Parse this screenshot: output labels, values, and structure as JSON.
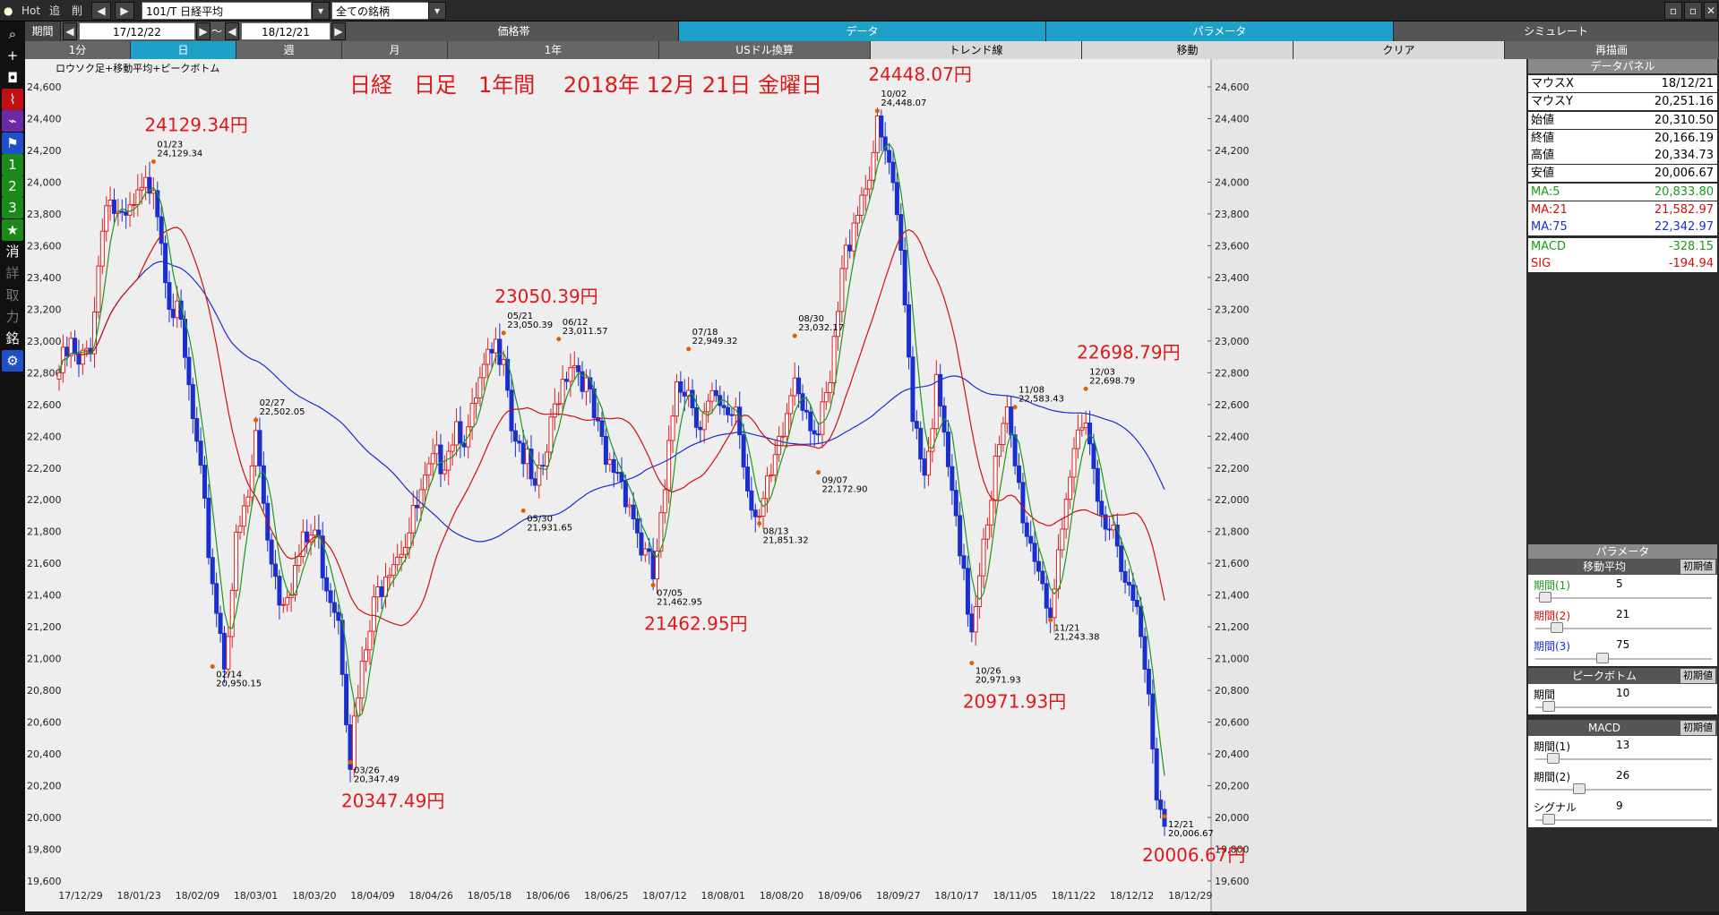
{
  "toolbar": {
    "hot": "Hot",
    "add": "追",
    "del": "削",
    "symbol": "101/T 日経平均",
    "filter": "全ての銘柄",
    "period_label": "期間",
    "date_from": "17/12/22",
    "sep": "～",
    "date_to": "18/12/21"
  },
  "tabs_top": [
    "価格帯",
    "データ",
    "パラメータ",
    "シミュレート"
  ],
  "tabs_sub": [
    "1分",
    "日",
    "週",
    "月",
    "1年",
    "USドル換算",
    "トレンド線",
    "移動",
    "クリア",
    "再描画"
  ],
  "side_icons": [
    "search-icon",
    "plus-icon",
    "camera-icon",
    "chart-icon",
    "chart2-icon",
    "flag-icon",
    "1",
    "2",
    "3",
    "★",
    "消",
    "詳",
    "取",
    "力",
    "銘",
    "gear-icon"
  ],
  "chart_title": "日経　日足　1年間　 2018年 12月 21日 金曜日",
  "chart_caption": "ロウソク足+移動平均+ピークボトム",
  "chart_data": {
    "type": "candlestick",
    "title": "日経　日足　1年間　 2018年 12月 21日 金曜日",
    "ylim": [
      19600,
      24600
    ],
    "y_ticks": [
      "24,600",
      "24,400",
      "24,200",
      "24,000",
      "23,800",
      "23,600",
      "23,400",
      "23,200",
      "23,000",
      "22,800",
      "22,600",
      "22,400",
      "22,200",
      "22,000",
      "21,800",
      "21,600",
      "21,400",
      "21,200",
      "21,000",
      "20,800",
      "20,600",
      "20,400",
      "20,200",
      "20,000",
      "19,800",
      "19,600"
    ],
    "x_ticks": [
      "17/12/29",
      "18/01/23",
      "18/02/09",
      "18/03/01",
      "18/03/20",
      "18/04/09",
      "18/04/26",
      "18/05/18",
      "18/06/06",
      "18/06/25",
      "18/07/12",
      "18/08/01",
      "18/08/20",
      "18/09/06",
      "18/09/27",
      "18/10/17",
      "18/11/05",
      "18/11/22",
      "18/12/12",
      "18/12/29"
    ],
    "peak_labels": [
      {
        "date": "01/23",
        "value": "24,129.34",
        "big": "24129.34円"
      },
      {
        "date": "02/14",
        "value": "20,950.15"
      },
      {
        "date": "02/27",
        "value": "22,502.05"
      },
      {
        "date": "03/26",
        "value": "20,347.49",
        "big": "20347.49円"
      },
      {
        "date": "05/21",
        "value": "23,050.39",
        "big": "23050.39円"
      },
      {
        "date": "05/30",
        "value": "21,931.65"
      },
      {
        "date": "06/12",
        "value": "23,011.57"
      },
      {
        "date": "07/05",
        "value": "21,462.95",
        "big": "21462.95円"
      },
      {
        "date": "07/18",
        "value": "22,949.32"
      },
      {
        "date": "08/13",
        "value": "21,851.32"
      },
      {
        "date": "08/30",
        "value": "23,032.17"
      },
      {
        "date": "09/07",
        "value": "22,172.90"
      },
      {
        "date": "10/02",
        "value": "24,448.07",
        "big": "24448.07円"
      },
      {
        "date": "10/26",
        "value": "20,971.93",
        "big": "20971.93円"
      },
      {
        "date": "11/08",
        "value": "22,583.43"
      },
      {
        "date": "11/21",
        "value": "21,243.38"
      },
      {
        "date": "12/03",
        "value": "22,698.79",
        "big": "22698.79円"
      },
      {
        "date": "12/21",
        "value": "20,006.67",
        "big": "20006.67円"
      }
    ],
    "anchors": [
      [
        0,
        22800
      ],
      [
        3,
        22950
      ],
      [
        5,
        22800
      ],
      [
        8,
        23000
      ],
      [
        12,
        23950
      ],
      [
        16,
        23700
      ],
      [
        21,
        23900
      ],
      [
        24,
        24050
      ],
      [
        28,
        23300
      ],
      [
        31,
        23050
      ],
      [
        35,
        22300
      ],
      [
        39,
        21500
      ],
      [
        42,
        21000
      ],
      [
        45,
        21700
      ],
      [
        48,
        22000
      ],
      [
        50,
        22400
      ],
      [
        53,
        21800
      ],
      [
        56,
        21400
      ],
      [
        59,
        21500
      ],
      [
        62,
        21700
      ],
      [
        65,
        21800
      ],
      [
        68,
        21500
      ],
      [
        71,
        21300
      ],
      [
        74,
        20400
      ],
      [
        77,
        20900
      ],
      [
        80,
        21300
      ],
      [
        83,
        21600
      ],
      [
        86,
        21700
      ],
      [
        89,
        21800
      ],
      [
        92,
        22000
      ],
      [
        95,
        22200
      ],
      [
        98,
        22300
      ],
      [
        101,
        22500
      ],
      [
        104,
        22400
      ],
      [
        107,
        22700
      ],
      [
        110,
        22900
      ],
      [
        113,
        23000
      ],
      [
        115,
        22500
      ],
      [
        118,
        22300
      ],
      [
        121,
        22000
      ],
      [
        124,
        22300
      ],
      [
        127,
        22700
      ],
      [
        130,
        22900
      ],
      [
        133,
        22800
      ],
      [
        136,
        22500
      ],
      [
        139,
        22200
      ],
      [
        142,
        22200
      ],
      [
        145,
        22000
      ],
      [
        148,
        21700
      ],
      [
        151,
        21500
      ],
      [
        154,
        22000
      ],
      [
        157,
        22800
      ],
      [
        160,
        22700
      ],
      [
        163,
        22500
      ],
      [
        166,
        22600
      ],
      [
        169,
        22500
      ],
      [
        172,
        22600
      ],
      [
        175,
        22100
      ],
      [
        178,
        21900
      ],
      [
        181,
        22100
      ],
      [
        184,
        22400
      ],
      [
        187,
        22800
      ],
      [
        190,
        22600
      ],
      [
        193,
        22400
      ],
      [
        196,
        22700
      ],
      [
        199,
        23400
      ],
      [
        202,
        23800
      ],
      [
        205,
        24000
      ],
      [
        208,
        24300
      ],
      [
        211,
        24100
      ],
      [
        214,
        23500
      ],
      [
        217,
        22600
      ],
      [
        220,
        22200
      ],
      [
        223,
        22700
      ],
      [
        226,
        22200
      ],
      [
        229,
        21600
      ],
      [
        232,
        21200
      ],
      [
        235,
        21800
      ],
      [
        238,
        22200
      ],
      [
        241,
        22500
      ],
      [
        243,
        22200
      ],
      [
        246,
        21800
      ],
      [
        249,
        21600
      ],
      [
        252,
        21300
      ],
      [
        255,
        21700
      ],
      [
        258,
        22300
      ],
      [
        261,
        22600
      ],
      [
        264,
        22000
      ],
      [
        267,
        21900
      ],
      [
        270,
        21500
      ],
      [
        272,
        21400
      ],
      [
        275,
        21200
      ],
      [
        277,
        20800
      ],
      [
        279,
        20200
      ],
      [
        281,
        20050
      ]
    ],
    "n_bars": 282
  },
  "data_panel": {
    "header": "データパネル",
    "rows": [
      {
        "k": "マウスX",
        "v": "18/12/21",
        "kc": "#000",
        "vc": "#000"
      },
      {
        "k": "マウスY",
        "v": "20,251.16",
        "kc": "#000",
        "vc": "#000"
      },
      {
        "k": "始値",
        "v": "20,310.50",
        "kc": "#000",
        "vc": "#000"
      },
      {
        "k": "終値",
        "v": "20,166.19",
        "kc": "#000",
        "vc": "#000"
      },
      {
        "k": "高値",
        "v": "20,334.73",
        "kc": "#000",
        "vc": "#000"
      },
      {
        "k": "安値",
        "v": "20,006.67",
        "kc": "#000",
        "vc": "#000"
      },
      {
        "k": "MA:5",
        "v": "20,833.80",
        "kc": "#1a9a1a",
        "vc": "#1a9a1a"
      },
      {
        "k": "MA:21",
        "v": "21,582.97",
        "kc": "#d01010",
        "vc": "#d01010"
      },
      {
        "k": "MA:75",
        "v": "22,342.97",
        "kc": "#1a2fd0",
        "vc": "#1a2fd0"
      },
      {
        "k": "MACD",
        "v": "-328.15",
        "kc": "#1a9a1a",
        "vc": "#1a9a1a"
      },
      {
        "k": "SIG",
        "v": "-194.94",
        "kc": "#d01010",
        "vc": "#d01010"
      }
    ]
  },
  "params": {
    "header": "パラメータ",
    "reset": "初期値",
    "ma_title": "移動平均",
    "ma": [
      {
        "k": "期間(1)",
        "v": "5",
        "color": "#1a9a1a",
        "pos": 0.02
      },
      {
        "k": "期間(2)",
        "v": "21",
        "color": "#d01010",
        "pos": 0.09
      },
      {
        "k": "期間(3)",
        "v": "75",
        "color": "#1a2fd0",
        "pos": 0.36
      }
    ],
    "pb_title": "ピークボトム",
    "pb": [
      {
        "k": "期間",
        "v": "10",
        "pos": 0.04
      }
    ],
    "macd_title": "MACD",
    "macd": [
      {
        "k": "期間(1)",
        "v": "13",
        "pos": 0.07
      },
      {
        "k": "期間(2)",
        "v": "26",
        "pos": 0.22
      },
      {
        "k": "シグナル",
        "v": "9",
        "pos": 0.04
      }
    ]
  }
}
